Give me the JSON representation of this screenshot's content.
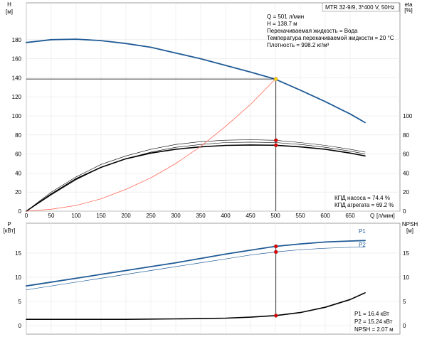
{
  "chart_data": [
    {
      "id": "head",
      "type": "line",
      "title": "MTR 32-9/9, 3*400 V, 50Hz",
      "y_label": "H",
      "y_unit": "[м]",
      "y2_label": "eta",
      "y2_unit": "[%]",
      "x_label": "Q",
      "x_unit": "[л/мин]",
      "xlim": [
        0,
        700
      ],
      "ylim": [
        0,
        200
      ],
      "y2lim": [
        0,
        200
      ],
      "x_ticks": [
        0,
        50,
        100,
        150,
        200,
        250,
        300,
        350,
        400,
        450,
        500,
        550,
        600,
        650
      ],
      "y_ticks": [
        0,
        20,
        40,
        60,
        80,
        100,
        120,
        140,
        160,
        180
      ],
      "y2_ticks": [
        0,
        20,
        40,
        60,
        80,
        100
      ],
      "info_lines": [
        "Q = 501 л/мин",
        "H = 138.7 м",
        "Перекачиваемая жидкость = Вода",
        "Температура перекачиваемой жидкости = 20 °C",
        "Плотность = 998.2 кг/м³"
      ],
      "bottom_notes": [
        "КПД насоса = 74.4 %",
        "КПД агрегата = 69.2 %"
      ],
      "operating_point": {
        "x": 501,
        "y": 138.7
      },
      "series": [
        {
          "key": "H",
          "axis": "y",
          "color": "#1f5a96",
          "width": 1.8,
          "x": [
            0,
            50,
            100,
            150,
            200,
            250,
            300,
            350,
            400,
            450,
            500,
            550,
            600,
            650,
            680
          ],
          "values": [
            177,
            180,
            180.5,
            179,
            176,
            172,
            166,
            160,
            153,
            146,
            138.5,
            127,
            115,
            102,
            93
          ]
        },
        {
          "key": "eta-pump-upper",
          "axis": "y2",
          "color": "#000000",
          "width": 0.6,
          "x": [
            0,
            50,
            100,
            150,
            200,
            250,
            300,
            350,
            400,
            450,
            500,
            550,
            600,
            650,
            680
          ],
          "values": [
            0,
            20,
            36,
            49,
            58,
            65,
            70,
            73,
            74.5,
            75,
            74.4,
            72,
            69,
            65,
            62
          ]
        },
        {
          "key": "eta-pump-lower",
          "axis": "y2",
          "color": "#000000",
          "width": 0.6,
          "x": [
            0,
            50,
            100,
            150,
            200,
            250,
            300,
            350,
            400,
            450,
            500,
            550,
            600,
            650,
            680
          ],
          "values": [
            0,
            17,
            33,
            46,
            55,
            62,
            67,
            70,
            72,
            72.5,
            72,
            70,
            67,
            63,
            60
          ]
        },
        {
          "key": "eta-unit",
          "axis": "y2",
          "color": "#000000",
          "width": 1.6,
          "x": [
            0,
            50,
            100,
            150,
            200,
            250,
            300,
            350,
            400,
            450,
            500,
            550,
            600,
            650,
            680
          ],
          "values": [
            0,
            18,
            34,
            46,
            55,
            61,
            65,
            67.5,
            69,
            69.5,
            69.2,
            67.5,
            65,
            61,
            58
          ]
        },
        {
          "key": "system-curve",
          "axis": "y",
          "color": "#ff6a5a",
          "width": 0.8,
          "x": [
            0,
            50,
            100,
            150,
            200,
            250,
            300,
            350,
            400,
            450,
            500
          ],
          "values": [
            0,
            2,
            6,
            13,
            23,
            35,
            50,
            68,
            89,
            112,
            138.7
          ]
        }
      ],
      "markers": [
        {
          "axis": "y",
          "x": 501,
          "y": 138.7,
          "color": "#ffd000"
        },
        {
          "axis": "y2",
          "x": 501,
          "y": 74.4,
          "color": "#e00000"
        },
        {
          "axis": "y2",
          "x": 501,
          "y": 69.2,
          "color": "#e00000"
        }
      ]
    },
    {
      "id": "power",
      "type": "line",
      "y_label": "P",
      "y_unit": "[кВт]",
      "y2_label": "NPSH",
      "y2_unit": "[м]",
      "xlim": [
        0,
        700
      ],
      "ylim": [
        0,
        20
      ],
      "y2lim": [
        0,
        20
      ],
      "y_ticks": [
        0,
        5,
        10,
        15
      ],
      "y2_ticks": [
        0,
        5,
        10,
        15
      ],
      "bottom_notes": [
        "P1 = 16.4 кВт",
        "P2 = 15.24 кВт",
        "NPSH = 2.07 м"
      ],
      "series": [
        {
          "key": "P1",
          "name": "P1",
          "axis": "y",
          "color": "#1f5a96",
          "width": 1.8,
          "x": [
            0,
            50,
            100,
            150,
            200,
            250,
            300,
            350,
            400,
            450,
            500,
            550,
            600,
            650,
            680
          ],
          "values": [
            8.2,
            9.0,
            9.8,
            10.6,
            11.4,
            12.2,
            13.0,
            13.9,
            14.8,
            15.6,
            16.4,
            16.9,
            17.3,
            17.5,
            17.6
          ]
        },
        {
          "key": "P2",
          "name": "P2",
          "axis": "y",
          "color": "#1f5a96",
          "width": 0.7,
          "x": [
            0,
            50,
            100,
            150,
            200,
            250,
            300,
            350,
            400,
            450,
            500,
            550,
            600,
            650,
            680
          ],
          "values": [
            7.4,
            8.2,
            9.0,
            9.8,
            10.6,
            11.4,
            12.2,
            13.0,
            13.8,
            14.6,
            15.24,
            15.7,
            16.0,
            16.2,
            16.3
          ]
        },
        {
          "key": "NPSH",
          "axis": "y2",
          "color": "#000000",
          "width": 1.6,
          "x": [
            0,
            50,
            100,
            150,
            200,
            250,
            300,
            350,
            400,
            450,
            500,
            550,
            600,
            650,
            680
          ],
          "values": [
            1.3,
            1.3,
            1.3,
            1.3,
            1.3,
            1.35,
            1.4,
            1.45,
            1.55,
            1.75,
            2.07,
            2.7,
            3.8,
            5.4,
            6.8
          ]
        }
      ],
      "markers": [
        {
          "axis": "y",
          "x": 501,
          "y": 16.4,
          "color": "#e00000"
        },
        {
          "axis": "y",
          "x": 501,
          "y": 15.24,
          "color": "#e00000"
        },
        {
          "axis": "y2",
          "x": 501,
          "y": 2.07,
          "color": "#e00000"
        }
      ]
    }
  ]
}
